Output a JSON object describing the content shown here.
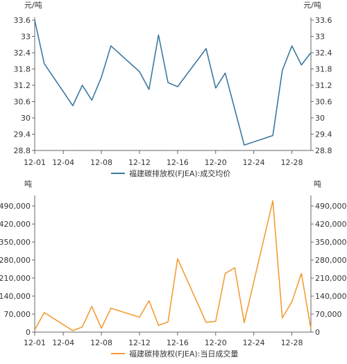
{
  "chart_data": [
    {
      "type": "line",
      "unit_left": "元/吨",
      "unit_right": "元/吨",
      "ylim": [
        28.8,
        33.6
      ],
      "yticks": [
        28.8,
        29.4,
        30,
        30.6,
        31.2,
        31.8,
        32.4,
        33,
        33.6
      ],
      "ytick_labels": [
        "28.8",
        "29.4",
        "30",
        "30.6",
        "31.2",
        "31.8",
        "32.4",
        "33",
        "33.6"
      ],
      "xlim": [
        1,
        30
      ],
      "xticks": [
        1,
        4,
        8,
        12,
        16,
        20,
        24,
        28
      ],
      "xtick_labels": [
        "12-01",
        "12-04",
        "12-08",
        "12-12",
        "12-16",
        "12-20",
        "12-24",
        "12-28"
      ],
      "grid": false,
      "legend_position": "bottom-center",
      "series": [
        {
          "name": "福建碳排放权(FJEA):成交均价",
          "color": "#3b77a0",
          "x": [
            1,
            2,
            5,
            6,
            7,
            8,
            9,
            12,
            13,
            14,
            15,
            16,
            19,
            20,
            21,
            23,
            26,
            27,
            28,
            29,
            30
          ],
          "values": [
            33.6,
            32.0,
            30.45,
            31.2,
            30.65,
            31.5,
            32.65,
            31.7,
            31.05,
            33.05,
            31.3,
            31.15,
            32.55,
            31.1,
            31.65,
            29.0,
            29.35,
            31.75,
            32.65,
            31.95,
            32.4
          ]
        }
      ]
    },
    {
      "type": "line",
      "unit_left": "吨",
      "unit_right": "吨",
      "ylim": [
        0,
        520000
      ],
      "yticks": [
        0,
        70000,
        140000,
        210000,
        280000,
        350000,
        420000,
        490000
      ],
      "ytick_labels": [
        "0",
        "70,000",
        "140,000",
        "210,000",
        "280,000",
        "350,000",
        "420,000",
        "490,000"
      ],
      "xlim": [
        1,
        30
      ],
      "xticks": [
        1,
        4,
        8,
        12,
        16,
        20,
        24,
        28
      ],
      "xtick_labels": [
        "12-01",
        "12-04",
        "12-08",
        "12-12",
        "12-16",
        "12-20",
        "12-24",
        "12-28"
      ],
      "grid": false,
      "legend_position": "bottom-center",
      "series": [
        {
          "name": "福建碳排放权(FJEA):当日成交量",
          "color": "#f39c33",
          "x": [
            1,
            2,
            5,
            6,
            7,
            8,
            9,
            12,
            13,
            14,
            15,
            16,
            19,
            20,
            21,
            22,
            23,
            26,
            27,
            28,
            29,
            30
          ],
          "values": [
            8000,
            76000,
            6000,
            20000,
            100000,
            15000,
            93000,
            58000,
            122000,
            26000,
            40000,
            285000,
            38000,
            42000,
            228000,
            250000,
            37000,
            510000,
            55000,
            118000,
            228000,
            12000
          ]
        }
      ]
    }
  ]
}
